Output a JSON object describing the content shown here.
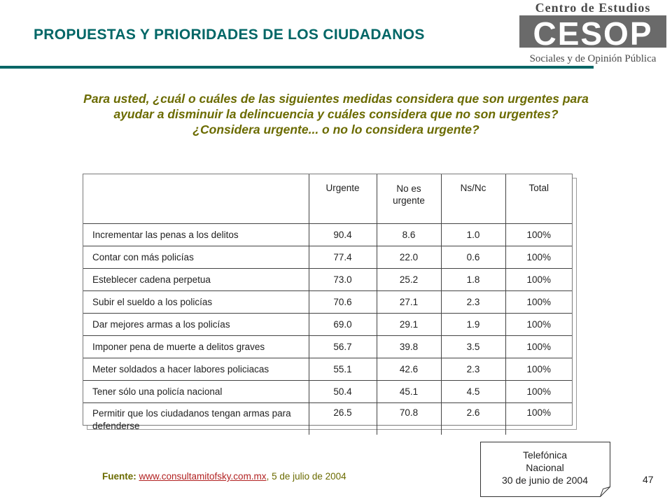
{
  "header": {
    "title": "PROPUESTAS Y PRIORIDADES DE LOS CIUDADANOS",
    "logo": {
      "top_text": "Centro de Estudios",
      "acronym": "CESOP",
      "bottom_text": "Sociales y de Opinión Pública",
      "color": "#4a4a4a"
    }
  },
  "question": {
    "line1": "Para usted, ¿cuál o cuáles de las siguientes medidas considera que son urgentes para",
    "line2": "ayudar a disminuir la delincuencia y cuáles considera que no son urgentes?",
    "line3": "¿Considera urgente... o no lo considera urgente?"
  },
  "table": {
    "headers": [
      "",
      "Urgente",
      "No es urgente",
      "Ns/Nc",
      "Total"
    ],
    "rows": [
      {
        "label": "Incrementar las penas a los delitos",
        "urgente": "90.4",
        "no_urgente": "8.6",
        "nsnc": "1.0",
        "total": "100%"
      },
      {
        "label": "Contar con más policías",
        "urgente": "77.4",
        "no_urgente": "22.0",
        "nsnc": "0.6",
        "total": "100%"
      },
      {
        "label": "Esteblecer cadena perpetua",
        "urgente": "73.0",
        "no_urgente": "25.2",
        "nsnc": "1.8",
        "total": "100%"
      },
      {
        "label": "Subir el sueldo a los policías",
        "urgente": "70.6",
        "no_urgente": "27.1",
        "nsnc": "2.3",
        "total": "100%"
      },
      {
        "label": "Dar mejores armas a los policías",
        "urgente": "69.0",
        "no_urgente": "29.1",
        "nsnc": "1.9",
        "total": "100%"
      },
      {
        "label": "Imponer pena de muerte a delitos graves",
        "urgente": "56.7",
        "no_urgente": "39.8",
        "nsnc": "3.5",
        "total": "100%"
      },
      {
        "label": "Meter soldados a hacer labores policiacas",
        "urgente": "55.1",
        "no_urgente": "42.6",
        "nsnc": "2.3",
        "total": "100%"
      },
      {
        "label": "Tener sólo una policía nacional",
        "urgente": "50.4",
        "no_urgente": "45.1",
        "nsnc": "4.5",
        "total": "100%"
      },
      {
        "label": "Permitir que los ciudadanos tengan armas para defenderse",
        "urgente": "26.5",
        "no_urgente": "70.8",
        "nsnc": "2.6",
        "total": "100%"
      }
    ]
  },
  "source": {
    "label": "Fuente:",
    "link": "www.consultamitofsky.com.mx",
    "date": ", 5 de julio de 2004"
  },
  "note": {
    "line1": "Telefónica",
    "line2": "Nacional",
    "line3": "30 de junio de 2004"
  },
  "page_number": "47",
  "colors": {
    "title": "#006666",
    "question": "#6b6b00",
    "link": "#b22222"
  }
}
